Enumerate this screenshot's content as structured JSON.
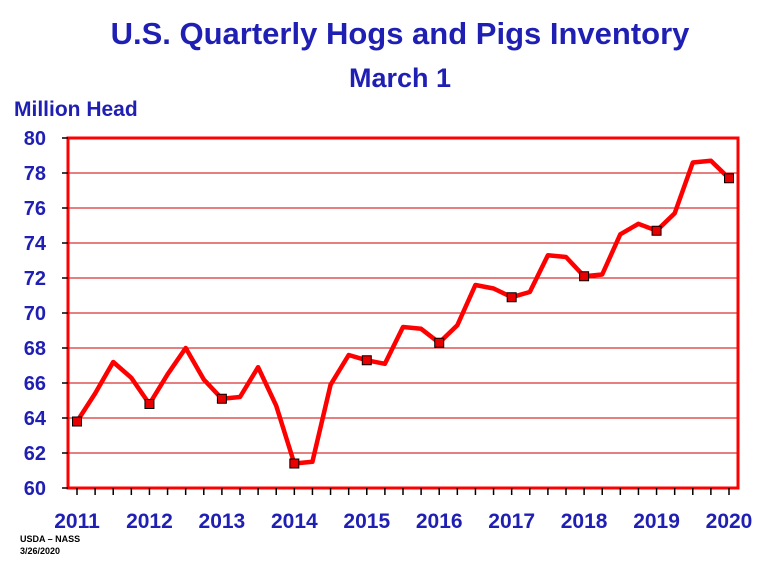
{
  "chart_data": {
    "type": "line",
    "title": "U.S. Quarterly Hogs and Pigs Inventory",
    "subtitle": "March 1",
    "ylabel": "Million Head",
    "ylim": [
      60,
      80
    ],
    "yticks": [
      60,
      62,
      64,
      66,
      68,
      70,
      72,
      74,
      76,
      78,
      80
    ],
    "xlim": [
      2011,
      2020
    ],
    "xticks": [
      2011,
      2012,
      2013,
      2014,
      2015,
      2016,
      2017,
      2018,
      2019,
      2020
    ],
    "grid": true,
    "series": [
      {
        "values": [
          63.8,
          65.4,
          67.2,
          66.3,
          64.8,
          66.5,
          68.0,
          66.2,
          65.1,
          65.2,
          66.9,
          64.7,
          61.4,
          61.5,
          65.9,
          67.6,
          67.3,
          67.1,
          69.2,
          69.1,
          68.3,
          69.3,
          71.6,
          71.4,
          70.9,
          71.2,
          73.3,
          73.2,
          72.1,
          72.2,
          74.5,
          75.1,
          74.7,
          75.7,
          78.6,
          78.7,
          77.7
        ],
        "marker_every": 4
      }
    ],
    "colors": {
      "line": "#ff0000",
      "marker": "#e80000",
      "frame": "#ff0000",
      "grid": "#cc0000",
      "text": "#1f1fb4"
    }
  },
  "source": {
    "org": "USDA – NASS",
    "date": "3/26/2020"
  }
}
